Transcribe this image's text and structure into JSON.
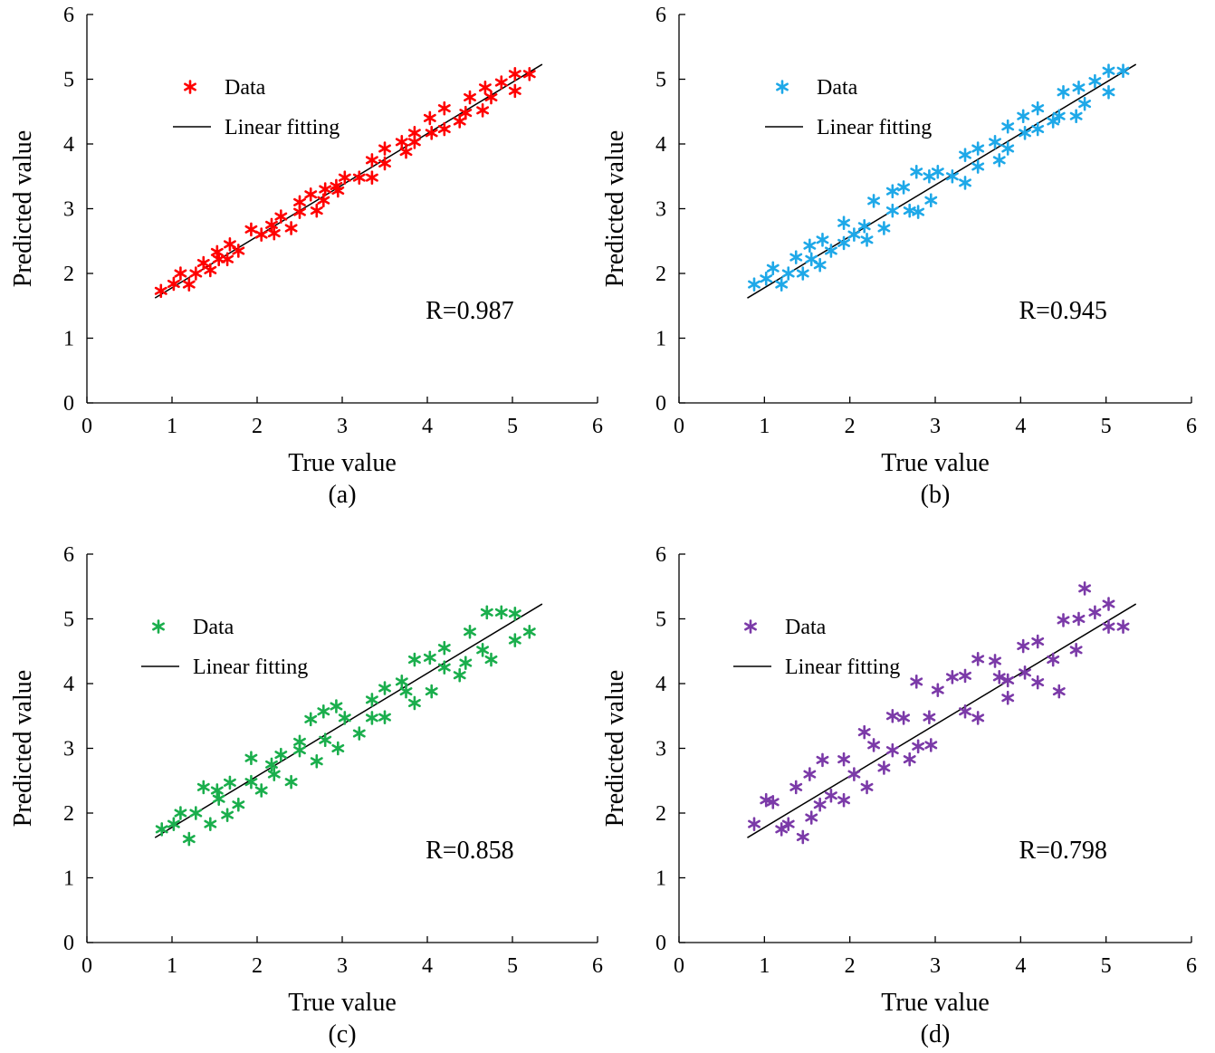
{
  "chart_data": [
    {
      "type": "scatter",
      "panel_label": "(a)",
      "xlabel": "True value",
      "ylabel": "Predicted value",
      "xlim": [
        0,
        6
      ],
      "ylim": [
        0,
        6
      ],
      "xticks": [
        "0",
        "1",
        "2",
        "3",
        "4",
        "5",
        "6"
      ],
      "yticks": [
        "0",
        "1",
        "2",
        "3",
        "4",
        "5",
        "6"
      ],
      "legend": {
        "position": "top-left",
        "data_label": "Data",
        "fit_label": "Linear fitting"
      },
      "r_text": "R=0.987",
      "marker_color": "#ff0000",
      "fit_line": {
        "x": [
          0.8,
          5.35
        ],
        "y": [
          1.62,
          5.23
        ]
      },
      "points": [
        [
          0.87,
          1.73
        ],
        [
          1.02,
          1.84
        ],
        [
          1.1,
          2.0
        ],
        [
          1.2,
          1.83
        ],
        [
          1.28,
          2.0
        ],
        [
          1.37,
          2.16
        ],
        [
          1.45,
          2.05
        ],
        [
          1.53,
          2.33
        ],
        [
          1.55,
          2.22
        ],
        [
          1.65,
          2.22
        ],
        [
          1.68,
          2.45
        ],
        [
          1.78,
          2.35
        ],
        [
          1.93,
          2.68
        ],
        [
          2.05,
          2.6
        ],
        [
          2.17,
          2.75
        ],
        [
          2.2,
          2.62
        ],
        [
          2.28,
          2.88
        ],
        [
          2.4,
          2.7
        ],
        [
          2.5,
          3.1
        ],
        [
          2.5,
          2.95
        ],
        [
          2.63,
          3.22
        ],
        [
          2.7,
          2.97
        ],
        [
          2.78,
          3.13
        ],
        [
          2.8,
          3.3
        ],
        [
          2.93,
          3.35
        ],
        [
          2.95,
          3.28
        ],
        [
          3.03,
          3.48
        ],
        [
          3.2,
          3.48
        ],
        [
          3.35,
          3.75
        ],
        [
          3.35,
          3.48
        ],
        [
          3.5,
          3.93
        ],
        [
          3.5,
          3.7
        ],
        [
          3.7,
          4.03
        ],
        [
          3.75,
          3.88
        ],
        [
          3.85,
          4.17
        ],
        [
          3.85,
          4.03
        ],
        [
          4.03,
          4.4
        ],
        [
          4.05,
          4.17
        ],
        [
          4.2,
          4.55
        ],
        [
          4.2,
          4.23
        ],
        [
          4.38,
          4.35
        ],
        [
          4.45,
          4.48
        ],
        [
          4.5,
          4.72
        ],
        [
          4.65,
          4.52
        ],
        [
          4.68,
          4.87
        ],
        [
          4.75,
          4.72
        ],
        [
          4.87,
          4.95
        ],
        [
          5.03,
          5.08
        ],
        [
          5.03,
          4.82
        ],
        [
          5.2,
          5.08
        ]
      ]
    },
    {
      "type": "scatter",
      "panel_label": "(b)",
      "xlabel": "True value",
      "ylabel": "Predicted value",
      "xlim": [
        0,
        6
      ],
      "ylim": [
        0,
        6
      ],
      "xticks": [
        "0",
        "1",
        "2",
        "3",
        "4",
        "5",
        "6"
      ],
      "yticks": [
        "0",
        "1",
        "2",
        "3",
        "4",
        "5",
        "6"
      ],
      "legend": {
        "position": "top-left",
        "data_label": "Data",
        "fit_label": "Linear fitting"
      },
      "r_text": "R=0.945",
      "marker_color": "#1ea8e8",
      "fit_line": {
        "x": [
          0.8,
          5.35
        ],
        "y": [
          1.62,
          5.23
        ]
      },
      "points": [
        [
          0.88,
          1.83
        ],
        [
          1.02,
          1.92
        ],
        [
          1.1,
          2.08
        ],
        [
          1.2,
          1.83
        ],
        [
          1.28,
          2.0
        ],
        [
          1.37,
          2.25
        ],
        [
          1.45,
          2.0
        ],
        [
          1.53,
          2.43
        ],
        [
          1.55,
          2.22
        ],
        [
          1.65,
          2.13
        ],
        [
          1.68,
          2.52
        ],
        [
          1.78,
          2.35
        ],
        [
          1.93,
          2.78
        ],
        [
          1.93,
          2.47
        ],
        [
          2.05,
          2.6
        ],
        [
          2.17,
          2.73
        ],
        [
          2.2,
          2.52
        ],
        [
          2.28,
          3.12
        ],
        [
          2.4,
          2.7
        ],
        [
          2.5,
          3.27
        ],
        [
          2.5,
          2.97
        ],
        [
          2.63,
          3.33
        ],
        [
          2.7,
          2.97
        ],
        [
          2.78,
          3.57
        ],
        [
          2.8,
          2.95
        ],
        [
          2.93,
          3.5
        ],
        [
          2.95,
          3.13
        ],
        [
          3.03,
          3.57
        ],
        [
          3.2,
          3.5
        ],
        [
          3.35,
          3.83
        ],
        [
          3.35,
          3.4
        ],
        [
          3.5,
          3.93
        ],
        [
          3.5,
          3.65
        ],
        [
          3.7,
          4.03
        ],
        [
          3.75,
          3.75
        ],
        [
          3.85,
          4.27
        ],
        [
          3.85,
          3.93
        ],
        [
          4.03,
          4.43
        ],
        [
          4.05,
          4.17
        ],
        [
          4.2,
          4.55
        ],
        [
          4.2,
          4.23
        ],
        [
          4.38,
          4.35
        ],
        [
          4.45,
          4.43
        ],
        [
          4.5,
          4.8
        ],
        [
          4.65,
          4.43
        ],
        [
          4.68,
          4.87
        ],
        [
          4.75,
          4.62
        ],
        [
          4.87,
          4.97
        ],
        [
          5.03,
          5.13
        ],
        [
          5.03,
          4.8
        ],
        [
          5.2,
          5.13
        ]
      ]
    },
    {
      "type": "scatter",
      "panel_label": "(c)",
      "xlabel": "True value",
      "ylabel": "Predicted value",
      "xlim": [
        0,
        6
      ],
      "ylim": [
        0,
        6
      ],
      "xticks": [
        "0",
        "1",
        "2",
        "3",
        "4",
        "5",
        "6"
      ],
      "yticks": [
        "0",
        "1",
        "2",
        "3",
        "4",
        "5",
        "6"
      ],
      "legend": {
        "position": "top-left",
        "data_label": "Data",
        "fit_label": "Linear fitting"
      },
      "r_text": "R=0.858",
      "marker_color": "#1aae4c",
      "fit_line": {
        "x": [
          0.8,
          5.35
        ],
        "y": [
          1.62,
          5.23
        ]
      },
      "points": [
        [
          0.88,
          1.75
        ],
        [
          1.02,
          1.83
        ],
        [
          1.1,
          2.0
        ],
        [
          1.2,
          1.6
        ],
        [
          1.28,
          2.0
        ],
        [
          1.37,
          2.4
        ],
        [
          1.45,
          1.83
        ],
        [
          1.53,
          2.35
        ],
        [
          1.55,
          2.22
        ],
        [
          1.65,
          1.97
        ],
        [
          1.68,
          2.47
        ],
        [
          1.78,
          2.13
        ],
        [
          1.93,
          2.85
        ],
        [
          1.93,
          2.48
        ],
        [
          2.05,
          2.35
        ],
        [
          2.17,
          2.75
        ],
        [
          2.2,
          2.6
        ],
        [
          2.28,
          2.9
        ],
        [
          2.4,
          2.48
        ],
        [
          2.5,
          3.1
        ],
        [
          2.5,
          2.97
        ],
        [
          2.63,
          3.45
        ],
        [
          2.7,
          2.8
        ],
        [
          2.78,
          3.57
        ],
        [
          2.8,
          3.13
        ],
        [
          2.93,
          3.65
        ],
        [
          2.95,
          3.0
        ],
        [
          3.03,
          3.47
        ],
        [
          3.2,
          3.23
        ],
        [
          3.35,
          3.75
        ],
        [
          3.35,
          3.47
        ],
        [
          3.5,
          3.93
        ],
        [
          3.5,
          3.48
        ],
        [
          3.7,
          4.03
        ],
        [
          3.75,
          3.88
        ],
        [
          3.85,
          4.37
        ],
        [
          3.85,
          3.7
        ],
        [
          4.03,
          4.4
        ],
        [
          4.05,
          3.88
        ],
        [
          4.2,
          4.55
        ],
        [
          4.2,
          4.25
        ],
        [
          4.38,
          4.13
        ],
        [
          4.45,
          4.32
        ],
        [
          4.5,
          4.8
        ],
        [
          4.65,
          4.52
        ],
        [
          4.7,
          5.1
        ],
        [
          4.75,
          4.37
        ],
        [
          4.87,
          5.1
        ],
        [
          5.03,
          5.08
        ],
        [
          5.03,
          4.67
        ],
        [
          5.2,
          4.8
        ]
      ]
    },
    {
      "type": "scatter",
      "panel_label": "(d)",
      "xlabel": "True value",
      "ylabel": "Predicted value",
      "xlim": [
        0,
        6
      ],
      "ylim": [
        0,
        6
      ],
      "xticks": [
        "0",
        "1",
        "2",
        "3",
        "4",
        "5",
        "6"
      ],
      "yticks": [
        "0",
        "1",
        "2",
        "3",
        "4",
        "5",
        "6"
      ],
      "legend": {
        "position": "top-left",
        "data_label": "Data",
        "fit_label": "Linear fitting"
      },
      "r_text": "R=0.798",
      "marker_color": "#7b3aa8",
      "fit_line": {
        "x": [
          0.8,
          5.35
        ],
        "y": [
          1.62,
          5.23
        ]
      },
      "points": [
        [
          0.88,
          1.83
        ],
        [
          1.02,
          2.2
        ],
        [
          1.1,
          2.17
        ],
        [
          1.2,
          1.75
        ],
        [
          1.28,
          1.83
        ],
        [
          1.37,
          2.4
        ],
        [
          1.45,
          1.63
        ],
        [
          1.53,
          2.6
        ],
        [
          1.55,
          1.93
        ],
        [
          1.65,
          2.13
        ],
        [
          1.68,
          2.82
        ],
        [
          1.78,
          2.27
        ],
        [
          1.93,
          2.83
        ],
        [
          1.93,
          2.2
        ],
        [
          2.05,
          2.6
        ],
        [
          2.17,
          3.25
        ],
        [
          2.2,
          2.4
        ],
        [
          2.28,
          3.05
        ],
        [
          2.4,
          2.7
        ],
        [
          2.5,
          3.5
        ],
        [
          2.5,
          2.97
        ],
        [
          2.63,
          3.47
        ],
        [
          2.7,
          2.83
        ],
        [
          2.78,
          4.03
        ],
        [
          2.8,
          3.03
        ],
        [
          2.93,
          3.48
        ],
        [
          2.95,
          3.05
        ],
        [
          3.03,
          3.9
        ],
        [
          3.2,
          4.1
        ],
        [
          3.35,
          4.12
        ],
        [
          3.35,
          3.57
        ],
        [
          3.5,
          4.38
        ],
        [
          3.5,
          3.47
        ],
        [
          3.7,
          4.35
        ],
        [
          3.75,
          4.1
        ],
        [
          3.85,
          4.05
        ],
        [
          3.85,
          3.78
        ],
        [
          4.03,
          4.58
        ],
        [
          4.05,
          4.17
        ],
        [
          4.2,
          4.65
        ],
        [
          4.2,
          4.02
        ],
        [
          4.38,
          4.37
        ],
        [
          4.45,
          3.88
        ],
        [
          4.5,
          4.98
        ],
        [
          4.65,
          4.52
        ],
        [
          4.68,
          5.0
        ],
        [
          4.75,
          5.47
        ],
        [
          4.87,
          5.1
        ],
        [
          5.03,
          5.23
        ],
        [
          5.03,
          4.88
        ],
        [
          5.2,
          4.88
        ]
      ]
    }
  ]
}
